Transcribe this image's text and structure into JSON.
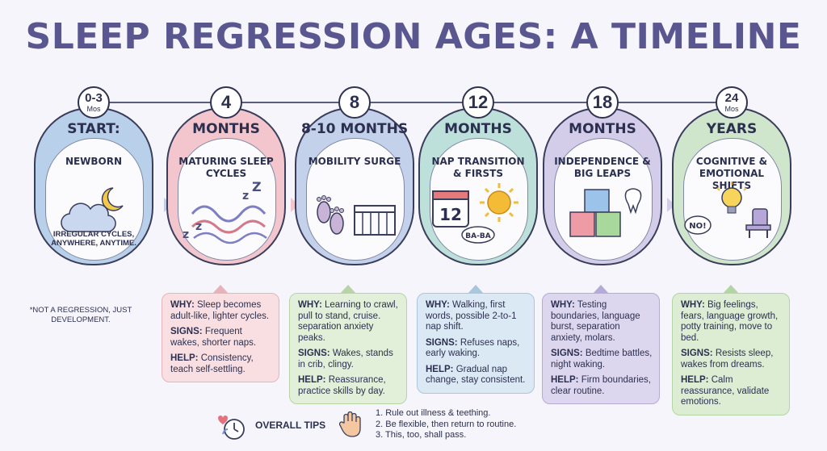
{
  "title": "SLEEP REGRESSION AGES: A TIMELINE",
  "colors": {
    "stage1": "#b8d0ea",
    "stage2": "#f2c6cc",
    "stage3": "#c3d1ea",
    "stage4": "#bde0da",
    "stage5": "#d4cdea",
    "stage6": "#cfe6cd",
    "box2": "#f9dfe1",
    "box3": "#e2efd9",
    "box4": "#dbe9f4",
    "box5": "#ddd6ef",
    "box6": "#dcedd4",
    "sun": "#f4bc36"
  },
  "stages": [
    {
      "badge_num": "0-3",
      "badge_unit": "Mos",
      "head": "START:",
      "name": "NEWBORN",
      "note": "IRREGULAR CYCLES, ANYWHERE, ANYTIME.",
      "icon": "cloud-moon-icon"
    },
    {
      "badge_num": "4",
      "head": "MONTHS",
      "name": "MATURING SLEEP CYCLES",
      "icon": "zzz-waves-icon"
    },
    {
      "badge_num": "8",
      "head": "8-10 MONTHS",
      "name": "MOBILITY SURGE",
      "icon": "footprints-crib-icon"
    },
    {
      "badge_num": "12",
      "head": "MONTHS",
      "name": "NAP TRANSITION & FIRSTS",
      "icon_text_calendar": "12",
      "icon_text_bubble": "BA-BA",
      "icon": "calendar-sun-icon"
    },
    {
      "badge_num": "18",
      "head": "MONTHS",
      "name": "INDEPENDENCE & BIG LEAPS",
      "icon": "blocks-tooth-icon"
    },
    {
      "badge_num": "24",
      "badge_unit": "Mos",
      "head": "YEARS",
      "name": "COGNITIVE & EMOTIONAL SHIFTS",
      "icon_text_bubble": "NO!",
      "icon": "bulb-chair-icon"
    }
  ],
  "footnote": "*NOT A REGRESSION, JUST DEVELOPMENT.",
  "details": [
    {
      "why_label": "WHY:",
      "why": "Sleep becomes adult-like, lighter cycles.",
      "signs_label": "SIGNS:",
      "signs": "Frequent wakes, shorter naps.",
      "help_label": "HELP:",
      "help": "Consistency, teach self-settling."
    },
    {
      "why_label": "WHY:",
      "why": "Learning to crawl, pull to stand, cruise. separation anxiety peaks.",
      "signs_label": "SIGNS:",
      "signs": "Wakes, stands in crib, clingy.",
      "help_label": "HELP:",
      "help": "Reassurance, practice skills by day."
    },
    {
      "why_label": "WHY:",
      "why": "Walking, first words, possible 2-to-1 nap shift.",
      "signs_label": "SIGNS:",
      "signs": "Refuses naps, early waking.",
      "help_label": "HELP:",
      "help": "Gradual nap change, stay consistent."
    },
    {
      "why_label": "WHY:",
      "why": "Testing boundaries, language burst, separation anxiety, molars.",
      "signs_label": "SIGNS:",
      "signs": "Bedtime battles, night waking.",
      "help_label": "HELP:",
      "help": "Firm boundaries, clear routine."
    },
    {
      "why_label": "WHY:",
      "why": "Big feelings, fears, language growth, potty training, move to bed.",
      "signs_label": "SIGNS:",
      "signs": "Resists sleep, wakes from dreams.",
      "help_label": "HELP:",
      "help": "Calm reassurance, validate emotions."
    }
  ],
  "tips": {
    "label": "OVERALL TIPS",
    "items": [
      "1. Rule out illness & teething.",
      "2. Be flexible, then return to routine.",
      "3. This, too, shall pass."
    ]
  }
}
